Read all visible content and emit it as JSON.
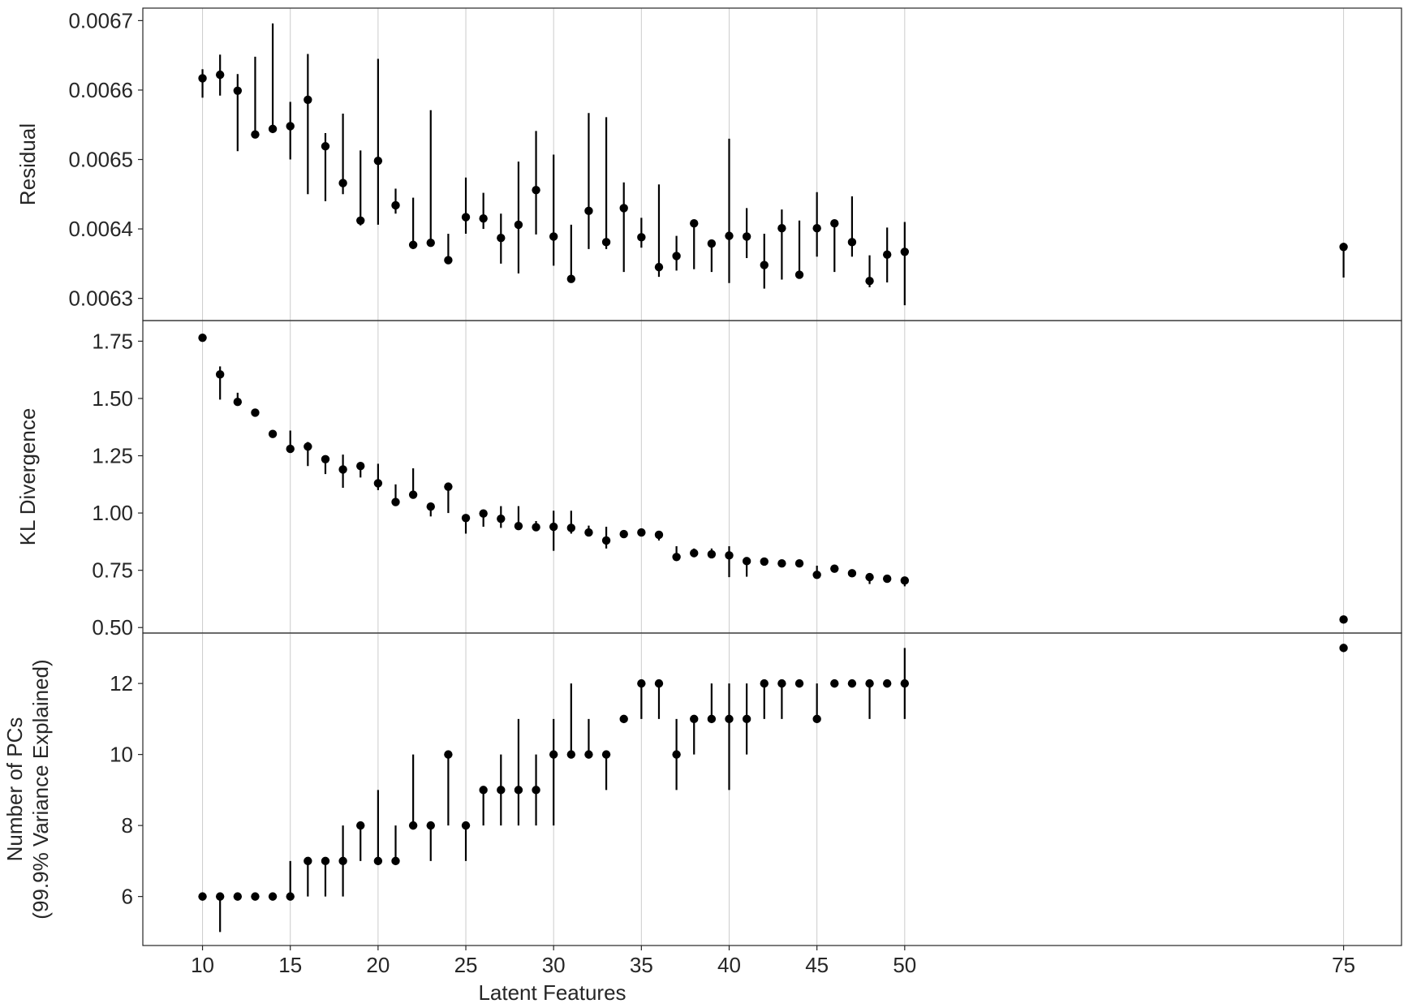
{
  "chart_data": {
    "type": "scatter",
    "layout": "3 vertically stacked panels sharing the x axis",
    "grid": "vertical gridlines only",
    "marker_color": "#000000",
    "grid_color": "#cccccc",
    "x": [
      10,
      11,
      12,
      13,
      14,
      15,
      16,
      17,
      18,
      19,
      20,
      21,
      22,
      23,
      24,
      25,
      26,
      27,
      28,
      29,
      30,
      31,
      32,
      33,
      34,
      35,
      36,
      37,
      38,
      39,
      40,
      41,
      42,
      43,
      44,
      45,
      46,
      47,
      48,
      49,
      50,
      75
    ],
    "xlabel": "Latent Features",
    "xticks": [
      10,
      15,
      20,
      25,
      30,
      35,
      40,
      45,
      50,
      75
    ],
    "xtick_labels": [
      "10",
      "15",
      "20",
      "25",
      "30",
      "35",
      "40",
      "45",
      "50",
      "75"
    ],
    "xlim": [
      6.6,
      78.3
    ],
    "panels": [
      {
        "ylabel": [
          "Residual"
        ],
        "ylim": [
          0.006268,
          0.006718
        ],
        "yticks": [
          0.0063,
          0.0064,
          0.0065,
          0.0066,
          0.0067
        ],
        "ytick_labels": [
          "0.0063",
          "0.0064",
          "0.0065",
          "0.0066",
          "0.0067"
        ],
        "points": [
          [
            0.006617,
            0.006589,
            0.00663
          ],
          [
            0.006622,
            0.006592,
            0.006651
          ],
          [
            0.006599,
            0.006512,
            0.006623
          ],
          [
            0.006536,
            0.006536,
            0.006648
          ],
          [
            0.006544,
            0.006544,
            0.006696
          ],
          [
            0.006548,
            0.0065,
            0.006583
          ],
          [
            0.006586,
            0.00645,
            0.006652
          ],
          [
            0.006519,
            0.00644,
            0.006538
          ],
          [
            0.006466,
            0.00645,
            0.006566
          ],
          [
            0.006412,
            0.006405,
            0.006513
          ],
          [
            0.006498,
            0.006406,
            0.006645
          ],
          [
            0.006434,
            0.006422,
            0.006458
          ],
          [
            0.006377,
            0.006377,
            0.006445
          ],
          [
            0.00638,
            0.00638,
            0.006571
          ],
          [
            0.006355,
            0.00635,
            0.006393
          ],
          [
            0.006417,
            0.006393,
            0.006474
          ],
          [
            0.006415,
            0.0064,
            0.006452
          ],
          [
            0.006387,
            0.00635,
            0.006422
          ],
          [
            0.006406,
            0.006336,
            0.006497
          ],
          [
            0.006456,
            0.006392,
            0.006541
          ],
          [
            0.006389,
            0.006347,
            0.006507
          ],
          [
            0.006328,
            0.006328,
            0.006406
          ],
          [
            0.006426,
            0.006371,
            0.006567
          ],
          [
            0.006381,
            0.006371,
            0.006561
          ],
          [
            0.00643,
            0.006338,
            0.006467
          ],
          [
            0.006388,
            0.006373,
            0.006416
          ],
          [
            0.006345,
            0.006331,
            0.006464
          ],
          [
            0.006361,
            0.00634,
            0.00639
          ],
          [
            0.006408,
            0.006342,
            0.00641
          ],
          [
            0.006379,
            0.006338,
            0.006384
          ],
          [
            0.00639,
            0.006322,
            0.00653
          ],
          [
            0.006389,
            0.006358,
            0.00643
          ],
          [
            0.006348,
            0.006314,
            0.006393
          ],
          [
            0.006401,
            0.006327,
            0.006428
          ],
          [
            0.006334,
            0.00633,
            0.006412
          ],
          [
            0.006401,
            0.00636,
            0.006453
          ],
          [
            0.006408,
            0.006338,
            0.00641
          ],
          [
            0.006381,
            0.00636,
            0.006447
          ],
          [
            0.006325,
            0.006316,
            0.006362
          ],
          [
            0.006363,
            0.006323,
            0.006402
          ],
          [
            0.006367,
            0.00629,
            0.00641
          ],
          [
            0.006374,
            0.00633,
            0.00638
          ]
        ]
      },
      {
        "ylabel": [
          "KL Divergence"
        ],
        "ylim": [
          0.476,
          1.84
        ],
        "yticks": [
          0.5,
          0.75,
          1.0,
          1.25,
          1.5,
          1.75
        ],
        "ytick_labels": [
          "0.50",
          "0.75",
          "1.00",
          "1.25",
          "1.50",
          "1.75"
        ],
        "points": [
          [
            1.765,
            1.765,
            1.765
          ],
          [
            1.605,
            1.495,
            1.64
          ],
          [
            1.485,
            1.47,
            1.525
          ],
          [
            1.438,
            1.43,
            1.445
          ],
          [
            1.345,
            1.345,
            1.345
          ],
          [
            1.28,
            1.275,
            1.36
          ],
          [
            1.29,
            1.205,
            1.31
          ],
          [
            1.235,
            1.17,
            1.24
          ],
          [
            1.19,
            1.11,
            1.255
          ],
          [
            1.205,
            1.155,
            1.21
          ],
          [
            1.13,
            1.1,
            1.215
          ],
          [
            1.048,
            1.04,
            1.125
          ],
          [
            1.08,
            1.08,
            1.195
          ],
          [
            1.028,
            0.985,
            1.045
          ],
          [
            1.115,
            1.0,
            1.115
          ],
          [
            0.978,
            0.91,
            0.985
          ],
          [
            0.998,
            0.94,
            1.01
          ],
          [
            0.975,
            0.935,
            1.03
          ],
          [
            0.943,
            0.943,
            1.03
          ],
          [
            0.938,
            0.935,
            0.965
          ],
          [
            0.94,
            0.835,
            1.01
          ],
          [
            0.935,
            0.91,
            1.01
          ],
          [
            0.915,
            0.905,
            0.945
          ],
          [
            0.88,
            0.845,
            0.94
          ],
          [
            0.908,
            0.905,
            0.915
          ],
          [
            0.915,
            0.91,
            0.92
          ],
          [
            0.905,
            0.88,
            0.91
          ],
          [
            0.808,
            0.8,
            0.855
          ],
          [
            0.825,
            0.81,
            0.845
          ],
          [
            0.82,
            0.81,
            0.845
          ],
          [
            0.815,
            0.72,
            0.855
          ],
          [
            0.79,
            0.722,
            0.8
          ],
          [
            0.788,
            0.775,
            0.802
          ],
          [
            0.78,
            0.77,
            0.79
          ],
          [
            0.78,
            0.775,
            0.79
          ],
          [
            0.73,
            0.725,
            0.77
          ],
          [
            0.757,
            0.75,
            0.763
          ],
          [
            0.737,
            0.735,
            0.742
          ],
          [
            0.72,
            0.69,
            0.732
          ],
          [
            0.713,
            0.705,
            0.72
          ],
          [
            0.705,
            0.68,
            0.715
          ],
          [
            0.535,
            0.535,
            0.535
          ]
        ]
      },
      {
        "ylabel": [
          "Number of PCs",
          "(99.9% Variance Explained)"
        ],
        "ylim": [
          4.62,
          13.42
        ],
        "yticks": [
          6,
          8,
          10,
          12
        ],
        "ytick_labels": [
          "6",
          "8",
          "10",
          "12"
        ],
        "points": [
          [
            6,
            6,
            6
          ],
          [
            6,
            5,
            6
          ],
          [
            6,
            6,
            6
          ],
          [
            6,
            6,
            6
          ],
          [
            6,
            6,
            6
          ],
          [
            6,
            6,
            7
          ],
          [
            7,
            6,
            7
          ],
          [
            7,
            6,
            7
          ],
          [
            7,
            6,
            8
          ],
          [
            8,
            7,
            8
          ],
          [
            7,
            7,
            9
          ],
          [
            7,
            7,
            8
          ],
          [
            8,
            8,
            10
          ],
          [
            8,
            7,
            8
          ],
          [
            10,
            8,
            10
          ],
          [
            8,
            7,
            8
          ],
          [
            9,
            8,
            9
          ],
          [
            9,
            8,
            10
          ],
          [
            9,
            8,
            11
          ],
          [
            9,
            8,
            10
          ],
          [
            10,
            8,
            11
          ],
          [
            10,
            10,
            12
          ],
          [
            10,
            10,
            11
          ],
          [
            10,
            9,
            10
          ],
          [
            11,
            11,
            11
          ],
          [
            12,
            11,
            12
          ],
          [
            12,
            11,
            12
          ],
          [
            10,
            9,
            11
          ],
          [
            11,
            10,
            11
          ],
          [
            11,
            11,
            12
          ],
          [
            11,
            9,
            12
          ],
          [
            11,
            10,
            12
          ],
          [
            12,
            11,
            12
          ],
          [
            12,
            11,
            12
          ],
          [
            12,
            12,
            12
          ],
          [
            11,
            11,
            12
          ],
          [
            12,
            12,
            12
          ],
          [
            12,
            12,
            12
          ],
          [
            12,
            11,
            12
          ],
          [
            12,
            12,
            12
          ],
          [
            12,
            11,
            13
          ],
          [
            13,
            13,
            13
          ]
        ]
      }
    ]
  }
}
